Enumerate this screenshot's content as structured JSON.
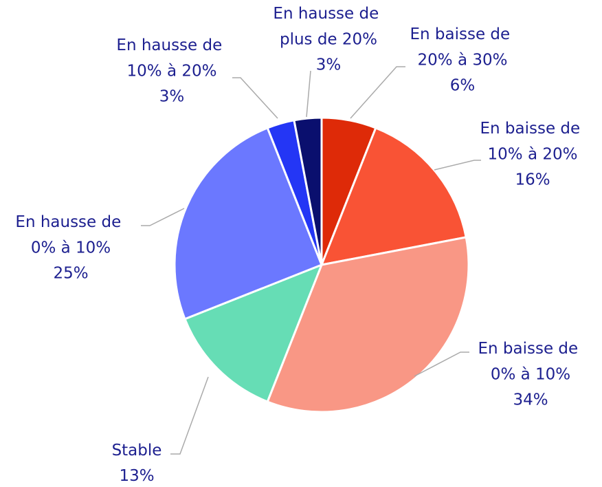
{
  "chart_data": {
    "type": "pie",
    "categories": [
      "En baisse de 20% à 30%",
      "En baisse de 10% à 20%",
      "En baisse de 0% à 10%",
      "Stable",
      "En hausse de 0% à 10%",
      "En hausse de 10% à 20%",
      "En hausse de plus de 20%"
    ],
    "values": [
      6,
      16,
      34,
      13,
      25,
      3,
      3
    ],
    "value_labels": [
      "6%",
      "16%",
      "34%",
      "13%",
      "25%",
      "3%",
      "3%"
    ],
    "colors": [
      "#de2a08",
      "#f95335",
      "#f99785",
      "#66ddb5",
      "#6b78ff",
      "#2436f5",
      "#0a0f6e"
    ]
  }
}
